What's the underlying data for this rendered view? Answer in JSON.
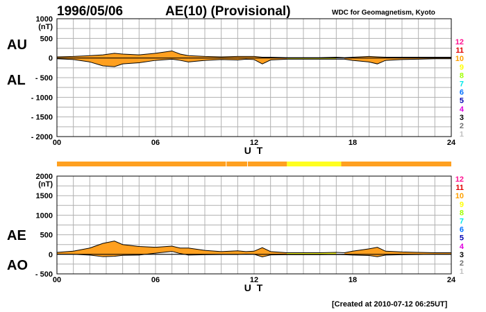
{
  "header": {
    "date": "1996/05/06",
    "title": "AE(10) (Provisional)",
    "source": "WDC for Geomagnetism, Kyoto"
  },
  "footer": {
    "created": "[Created at 2010-07-12 06:25UT]"
  },
  "colors": {
    "fill_main": "#ffa020",
    "fill_alt": "#ffff20",
    "grid": "#b0b0b0",
    "line": "#000000"
  },
  "station_scale": {
    "labels": [
      "12",
      "11",
      "10",
      "9",
      "8",
      "7",
      "6",
      "5",
      "4",
      "3",
      "2",
      "1"
    ],
    "colors": [
      "#ff1090",
      "#e00000",
      "#ffa000",
      "#ffff00",
      "#a0ff00",
      "#00e8e8",
      "#0070ff",
      "#0000b0",
      "#e000e0",
      "#000000",
      "#707070",
      "#c0c0c0"
    ]
  },
  "chart_data": [
    {
      "type": "area",
      "panel": "top",
      "series_labels": [
        "AU",
        "AL"
      ],
      "ylabel": "(nT)",
      "ylim": [
        -2000,
        1000
      ],
      "yticks": [
        1000,
        500,
        0,
        -500,
        -1000,
        -1500,
        -2000
      ],
      "ytick_labels": [
        "1000",
        "500",
        "0",
        "- 500",
        "- 1000",
        "- 1500",
        "- 2000"
      ],
      "xlabel": "U T",
      "xlim": [
        0,
        24
      ],
      "xticks": [
        0,
        6,
        12,
        18,
        24
      ],
      "xtick_labels": [
        "00",
        "06",
        "12",
        "18",
        "24"
      ],
      "x": [
        0,
        1,
        2,
        2.8,
        3.5,
        4,
        5,
        6,
        7,
        7.5,
        8,
        9,
        10,
        11,
        11.5,
        12,
        12.5,
        13,
        14,
        15,
        16,
        17,
        17.5,
        18,
        19,
        19.5,
        20,
        21,
        22,
        23,
        24
      ],
      "AU": [
        30,
        40,
        60,
        80,
        120,
        100,
        80,
        120,
        180,
        100,
        60,
        40,
        30,
        40,
        40,
        40,
        20,
        20,
        10,
        10,
        10,
        20,
        10,
        20,
        40,
        30,
        20,
        20,
        20,
        20,
        20
      ],
      "AL": [
        -20,
        -40,
        -100,
        -200,
        -220,
        -150,
        -120,
        -60,
        -30,
        -60,
        -100,
        -60,
        -40,
        -50,
        -30,
        -40,
        -150,
        -50,
        -30,
        -30,
        -30,
        -30,
        -30,
        -60,
        -100,
        -150,
        -60,
        -40,
        -30,
        -20,
        -20
      ]
    },
    {
      "type": "area",
      "panel": "bottom",
      "series_labels": [
        "AE",
        "AO"
      ],
      "ylabel": "(nT)",
      "ylim": [
        -500,
        2000
      ],
      "yticks": [
        2000,
        1500,
        1000,
        500,
        0,
        -500
      ],
      "ytick_labels": [
        "2000",
        "1500",
        "1000",
        "500",
        "0",
        "- 500"
      ],
      "xlabel": "U T",
      "xlim": [
        0,
        24
      ],
      "xticks": [
        0,
        6,
        12,
        18,
        24
      ],
      "xtick_labels": [
        "00",
        "06",
        "12",
        "18",
        "24"
      ],
      "x": [
        0,
        1,
        2,
        2.8,
        3.5,
        4,
        5,
        6,
        7,
        7.5,
        8,
        9,
        10,
        11,
        11.5,
        12,
        12.5,
        13,
        14,
        15,
        16,
        17,
        17.5,
        18,
        19,
        19.5,
        20,
        21,
        22,
        23,
        24
      ],
      "AE": [
        50,
        80,
        160,
        280,
        340,
        250,
        200,
        180,
        210,
        160,
        160,
        100,
        70,
        90,
        70,
        80,
        170,
        70,
        40,
        40,
        40,
        50,
        40,
        80,
        140,
        180,
        80,
        60,
        50,
        40,
        40
      ],
      "AO": [
        5,
        0,
        -20,
        -60,
        -50,
        -25,
        -20,
        30,
        75,
        20,
        -20,
        -10,
        -5,
        -5,
        5,
        0,
        -65,
        -15,
        -10,
        -10,
        -10,
        -5,
        -10,
        -20,
        -30,
        -60,
        -20,
        -10,
        -5,
        0,
        0
      ]
    }
  ],
  "station_bar": {
    "segments": [
      {
        "start": 0,
        "end": 14,
        "color": "#ffa020"
      },
      {
        "start": 14,
        "end": 17.3,
        "color": "#ffff20"
      },
      {
        "start": 17.3,
        "end": 24,
        "color": "#ffa020"
      }
    ],
    "dividers": [
      10.3,
      11.6
    ]
  },
  "highlight_range": [
    14,
    17.3
  ]
}
